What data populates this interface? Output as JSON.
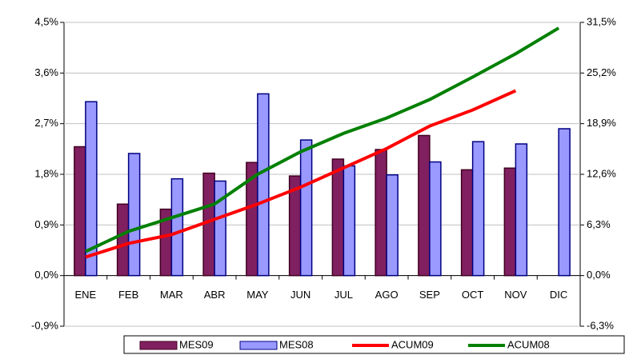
{
  "chart_data": {
    "type": "bar-line",
    "categories": [
      "ENE",
      "FEB",
      "MAR",
      "ABR",
      "MAY",
      "JUN",
      "JUL",
      "AGO",
      "SEP",
      "OCT",
      "NOV",
      "DIC"
    ],
    "series": [
      {
        "name": "MES09",
        "type": "bar",
        "color": "#802060",
        "values": [
          2.29,
          1.27,
          1.18,
          1.82,
          2.01,
          1.77,
          2.07,
          2.24,
          2.49,
          1.88,
          1.91,
          null
        ]
      },
      {
        "name": "MES08",
        "type": "bar",
        "color": "#9999ff",
        "values": [
          3.09,
          2.17,
          1.72,
          1.68,
          3.23,
          2.41,
          1.95,
          1.79,
          2.02,
          2.38,
          2.34,
          2.61
        ]
      },
      {
        "name": "ACUM09",
        "type": "line",
        "axis": "y2",
        "color": "#ff0000",
        "values": [
          2.3,
          4.0,
          5.1,
          7.0,
          8.9,
          11.0,
          13.4,
          15.8,
          18.6,
          20.6,
          23.0,
          null
        ]
      },
      {
        "name": "ACUM08",
        "type": "line",
        "axis": "y2",
        "color": "#008000",
        "values": [
          3.0,
          5.5,
          7.2,
          8.9,
          12.6,
          15.4,
          17.7,
          19.6,
          21.9,
          24.7,
          27.6,
          30.8
        ]
      }
    ],
    "ylim": [
      -0.9,
      4.5
    ],
    "yticks": [
      {
        "value": -0.9,
        "label": "-0,9%"
      },
      {
        "value": 0,
        "label": "0,0%"
      },
      {
        "value": 0.9,
        "label": "0,9%"
      },
      {
        "value": 1.8,
        "label": "1,8%"
      },
      {
        "value": 2.7,
        "label": "2,7%"
      },
      {
        "value": 3.6,
        "label": "3,6%"
      },
      {
        "value": 4.5,
        "label": "4,5%"
      }
    ],
    "y2lim": [
      -6.3,
      31.5
    ],
    "y2ticks": [
      {
        "value": -6.3,
        "label": "-6,3%"
      },
      {
        "value": 0,
        "label": "0,0%"
      },
      {
        "value": 6.3,
        "label": "6,3%"
      },
      {
        "value": 12.6,
        "label": "12,6%"
      },
      {
        "value": 18.9,
        "label": "18,9%"
      },
      {
        "value": 25.2,
        "label": "25,2%"
      },
      {
        "value": 31.5,
        "label": "31,5%"
      }
    ],
    "grid": true
  }
}
